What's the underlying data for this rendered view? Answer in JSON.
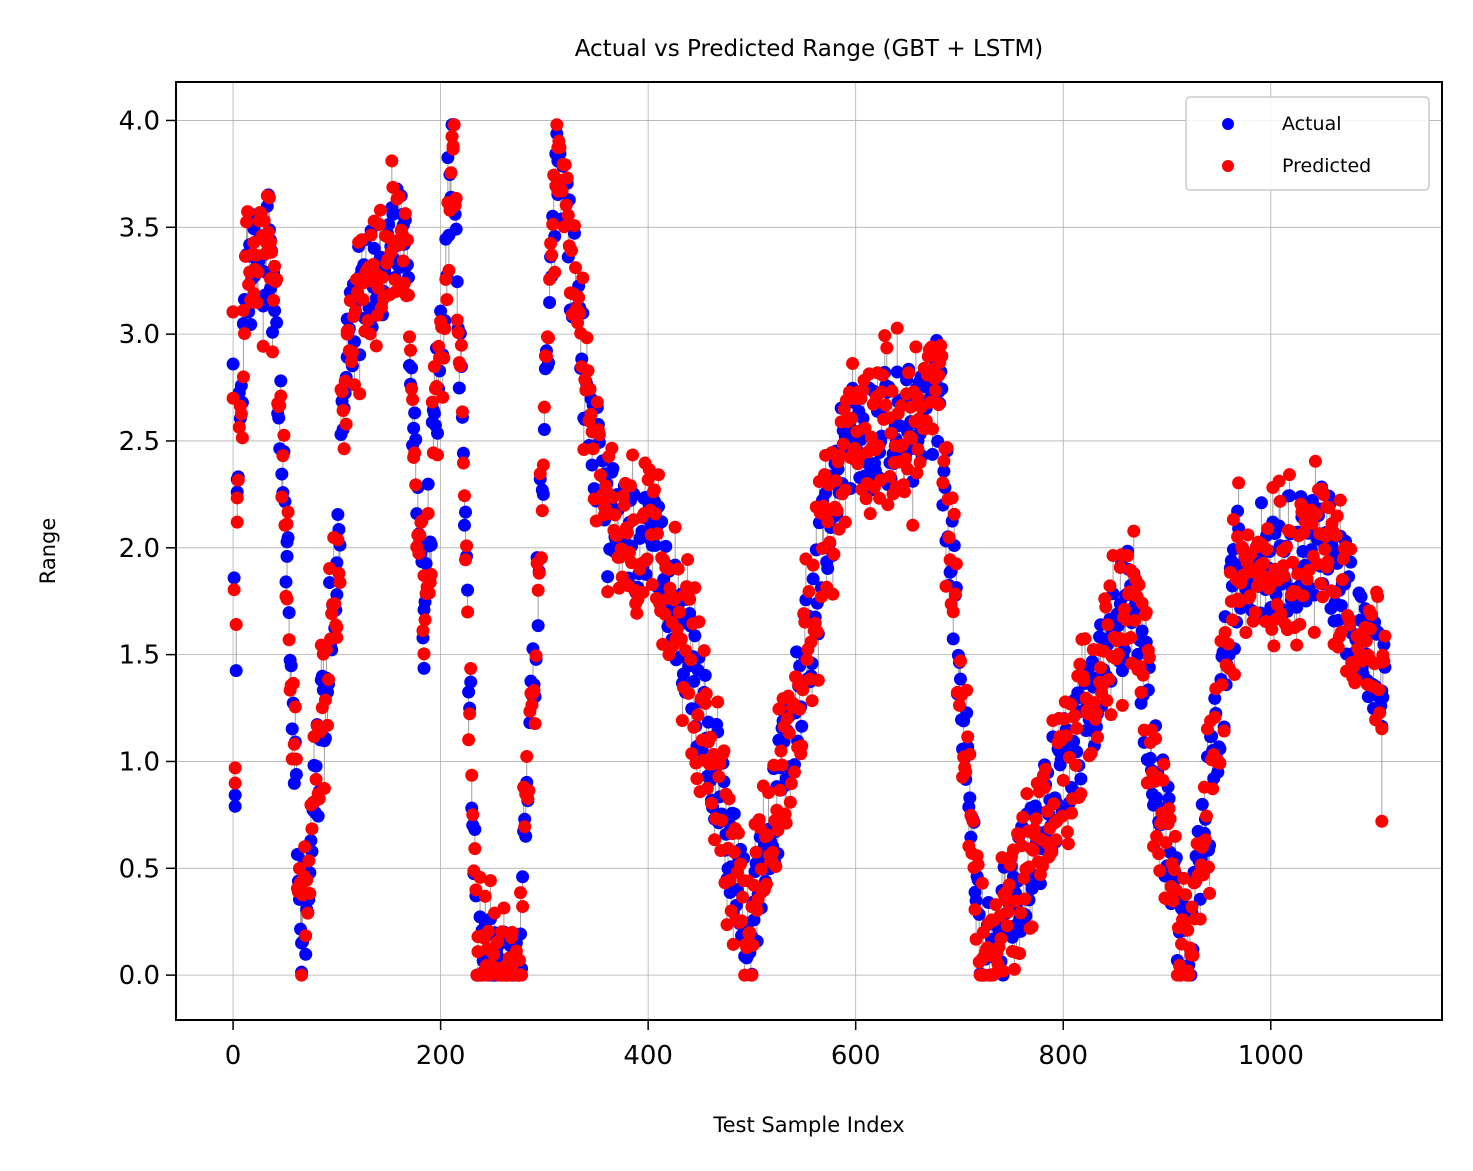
{
  "chart_data": {
    "type": "scatter",
    "title": "Actual vs Predicted Range (GBT + LSTM)",
    "xlabel": "Test Sample Index",
    "ylabel": "Range",
    "xlim": [
      -55,
      1165
    ],
    "ylim": [
      -0.21,
      4.18
    ],
    "xticks": [
      0,
      200,
      400,
      600,
      800,
      1000
    ],
    "xtick_labels": [
      "0",
      "200",
      "400",
      "600",
      "800",
      "1000"
    ],
    "yticks": [
      0.0,
      0.5,
      1.0,
      1.5,
      2.0,
      2.5,
      3.0,
      3.5,
      4.0
    ],
    "ytick_labels": [
      "0.0",
      "0.5",
      "1.0",
      "1.5",
      "2.0",
      "2.5",
      "3.0",
      "3.5",
      "4.0"
    ],
    "grid": true,
    "legend_position": "top-right",
    "connector_color": "#a0a0a0",
    "series": [
      {
        "name": "Actual",
        "color": "#0000ff"
      },
      {
        "name": "Predicted",
        "color": "#ff0000"
      }
    ],
    "sampled_points": [
      {
        "x": 0,
        "actual": 2.86,
        "predicted": 2.7
      },
      {
        "x": 2,
        "actual": 0.79,
        "predicted": 0.97
      },
      {
        "x": 4,
        "actual": 2.32,
        "predicted": 2.12
      },
      {
        "x": 10,
        "actual": 3.05,
        "predicted": 2.8
      },
      {
        "x": 20,
        "actual": 3.36,
        "predicted": 3.19
      },
      {
        "x": 36,
        "actual": 3.44,
        "predicted": 3.26
      },
      {
        "x": 52,
        "actual": 1.96,
        "predicted": 1.76
      },
      {
        "x": 66,
        "actual": 0.15,
        "predicted": 0.42
      },
      {
        "x": 100,
        "actual": 1.93,
        "predicted": 1.58
      },
      {
        "x": 110,
        "actual": 3.07,
        "predicted": 3.0
      },
      {
        "x": 164,
        "actual": 3.51,
        "predicted": 3.2
      },
      {
        "x": 184,
        "actual": 1.71,
        "predicted": 1.87
      },
      {
        "x": 212,
        "actual": 3.98,
        "predicted": 3.88
      },
      {
        "x": 236,
        "actual": 0.0,
        "predicted": 0.18
      },
      {
        "x": 276,
        "actual": 0.0,
        "predicted": 0.07
      },
      {
        "x": 313,
        "actual": 3.81,
        "predicted": 3.67
      },
      {
        "x": 358,
        "actual": 2.13,
        "predicted": 2.19
      },
      {
        "x": 420,
        "actual": 1.89,
        "predicted": 1.5
      },
      {
        "x": 500,
        "actual": 0.18,
        "predicted": 0.32
      },
      {
        "x": 590,
        "actual": 2.52,
        "predicted": 2.27
      },
      {
        "x": 660,
        "actual": 2.58,
        "predicted": 2.46
      },
      {
        "x": 680,
        "actual": 2.73,
        "predicted": 2.67
      },
      {
        "x": 722,
        "actual": 0.0,
        "predicted": 0.43
      },
      {
        "x": 865,
        "actual": 1.78,
        "predicted": 1.58
      },
      {
        "x": 920,
        "actual": 0.0,
        "predicted": 0.02
      },
      {
        "x": 968,
        "actual": 1.92,
        "predicted": 1.76
      },
      {
        "x": 1054,
        "actual": 2.02,
        "predicted": 1.91
      },
      {
        "x": 1107,
        "actual": 1.33,
        "predicted": 0.72
      }
    ]
  }
}
